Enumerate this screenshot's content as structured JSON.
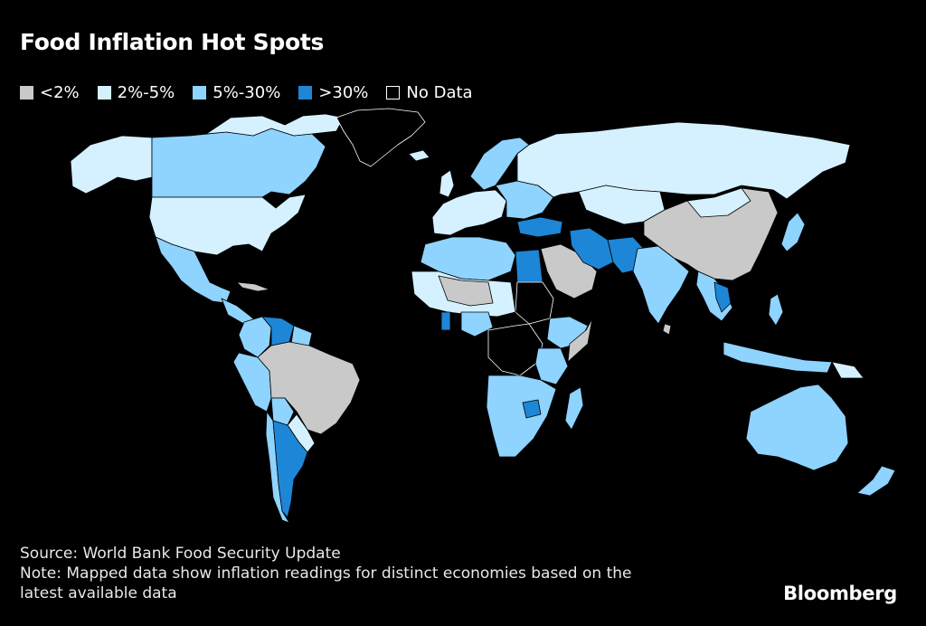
{
  "title": "Food Inflation Hot Spots",
  "colors": {
    "background": "#000000",
    "lt2": "#c9c9c9",
    "r2_5": "#d5f1ff",
    "r5_30": "#8fd3ff",
    "gt30": "#1e86d6",
    "no_data": "#000000",
    "border": "#000000"
  },
  "legend": [
    {
      "label": "<2%",
      "color": "#c9c9c9"
    },
    {
      "label": "2%-5%",
      "color": "#d5f1ff"
    },
    {
      "label": "5%-30%",
      "color": "#8fd3ff"
    },
    {
      "label": ">30%",
      "color": "#1e86d6"
    },
    {
      "label": "No Data",
      "color": "none"
    }
  ],
  "footer": {
    "source": "Source: World Bank Food Security Update",
    "note": "Note: Mapped data show inflation readings for distinct economies based on the",
    "note2": "latest available data"
  },
  "brand": "Bloomberg"
}
